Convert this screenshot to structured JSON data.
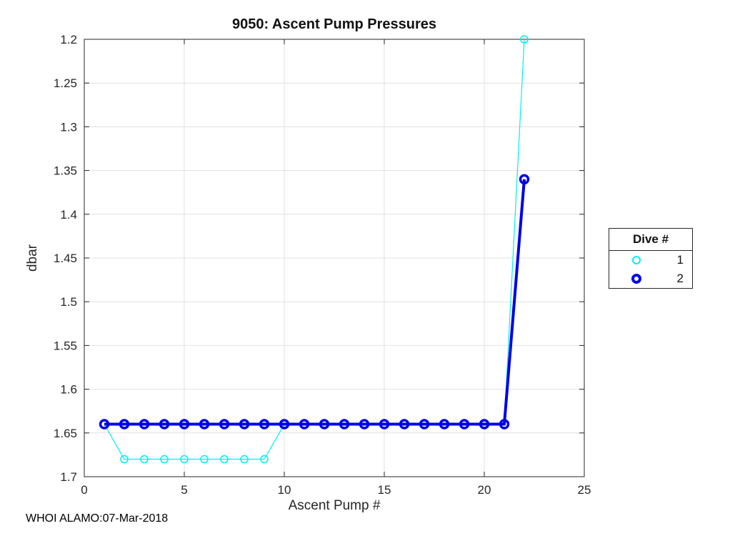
{
  "figure": {
    "footer": "WHOI ALAMO:07-Mar-2018",
    "background_color": "#ffffff"
  },
  "chart_data": {
    "type": "line",
    "title": "9050: Ascent Pump Pressures",
    "xlabel": "Ascent Pump #",
    "ylabel": "dbar",
    "xlim": [
      0,
      25
    ],
    "ylim": [
      1.2,
      1.7
    ],
    "y_axis_reversed": true,
    "grid": true,
    "xticks": [
      0,
      5,
      10,
      15,
      20,
      25
    ],
    "yticks": [
      1.2,
      1.25,
      1.3,
      1.35,
      1.4,
      1.45,
      1.5,
      1.55,
      1.6,
      1.65,
      1.7
    ],
    "axis_color": "#262626",
    "grid_color": "#e0e0e0",
    "legend": {
      "title": "Dive #",
      "position": "outside-right"
    },
    "x": [
      1,
      2,
      3,
      4,
      5,
      6,
      7,
      8,
      9,
      10,
      11,
      12,
      13,
      14,
      15,
      16,
      17,
      18,
      19,
      20,
      21,
      22
    ],
    "series": [
      {
        "name": "1",
        "color": "#00efef",
        "line_width": 1.2,
        "marker": "circle",
        "marker_radius": 5,
        "marker_stroke": 1.5,
        "values": [
          1.64,
          1.68,
          1.68,
          1.68,
          1.68,
          1.68,
          1.68,
          1.68,
          1.68,
          1.64,
          1.64,
          1.64,
          1.64,
          1.64,
          1.64,
          1.64,
          1.64,
          1.64,
          1.64,
          1.64,
          1.64,
          1.2
        ]
      },
      {
        "name": "2",
        "color": "#0000e6",
        "line_width": 4,
        "marker": "circle",
        "marker_radius": 5.5,
        "marker_stroke": 3.5,
        "values": [
          1.64,
          1.64,
          1.64,
          1.64,
          1.64,
          1.64,
          1.64,
          1.64,
          1.64,
          1.64,
          1.64,
          1.64,
          1.64,
          1.64,
          1.64,
          1.64,
          1.64,
          1.64,
          1.64,
          1.64,
          1.64,
          1.36
        ]
      }
    ]
  }
}
